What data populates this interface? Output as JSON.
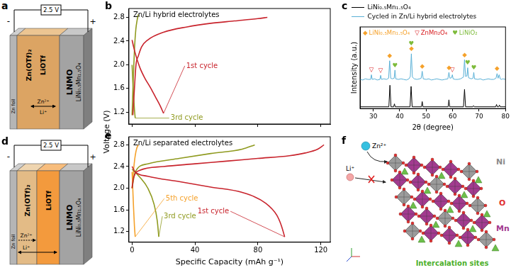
{
  "panel_labels": [
    "a",
    "b",
    "c",
    "d",
    "e",
    "f"
  ],
  "schematics": [
    {
      "voltage": "2.5 V",
      "negative": "-",
      "positive": "+",
      "anode": "Zn foil",
      "electrolytes": [
        "Zn(OTf)₂",
        "LiOTf"
      ],
      "cathode": "LNMO",
      "cathode_formula": "LiNi₀.₅Mn₁.₅O₄",
      "ions": [
        "Zn²⁺",
        "Li⁺"
      ],
      "separated": false
    },
    {
      "voltage": "2.5 V",
      "negative": "-",
      "positive": "+",
      "anode": "Zn foil",
      "electrolytes": [
        "Zn(OTf)₂",
        "LiOTf"
      ],
      "cathode": "LNMO",
      "cathode_formula": "LiNi₀.₅Mn₁.₅O₄",
      "ions": [
        "Zn²⁺",
        "Li⁺"
      ],
      "separated": true
    }
  ],
  "chart_data": [
    {
      "type": "line",
      "title": "Zn/Li hybrid electrolytes",
      "ylabel": "Voltage (V)",
      "xlim": [
        -2,
        126
      ],
      "xticks": [
        0,
        40,
        80,
        120
      ],
      "ylim": [
        1.0,
        2.95
      ],
      "yticks": [
        1.2,
        1.6,
        {
          "value": 2,
          "label": "2.0"
        },
        2.4,
        2.8
      ],
      "tick_labels": "y",
      "grid": false,
      "series": [
        {
          "name": "1st cycle",
          "color": "#c8232c",
          "segments": [
            {
              "x": [
                0.5,
                1.5,
                2.5,
                4,
                6,
                10,
                20,
                35,
                50,
                65,
                80,
                86
              ],
              "values": [
                1.15,
                1.6,
                2.0,
                2.15,
                2.3,
                2.42,
                2.55,
                2.64,
                2.7,
                2.74,
                2.78,
                2.8
              ]
            },
            {
              "x": [
                0,
                1,
                2.5,
                5,
                8,
                12,
                15,
                18,
                20
              ],
              "values": [
                2.42,
                2.3,
                2.15,
                1.95,
                1.78,
                1.6,
                1.45,
                1.3,
                1.18
              ]
            }
          ]
        },
        {
          "name": "3rd cycle",
          "color": "#8f9a1f",
          "segments": [
            {
              "x": [
                0,
                0.8,
                1.6,
                2.4,
                3.2,
                4
              ],
              "values": [
                1.15,
                1.8,
                2.3,
                2.6,
                2.75,
                2.85
              ]
            },
            {
              "x": [
                0,
                0.5,
                1,
                1.5,
                2
              ],
              "values": [
                2.0,
                1.7,
                1.45,
                1.25,
                1.1
              ]
            }
          ]
        }
      ]
    },
    {
      "type": "line",
      "title": "Zn/Li separated electrolytes",
      "xlabel": "Specific Capacity (mAh g⁻¹)",
      "xlim": [
        -2,
        126
      ],
      "xticks": [
        0,
        40,
        80,
        120
      ],
      "ylim": [
        1.0,
        2.95
      ],
      "yticks": [
        1.2,
        1.6,
        {
          "value": 2,
          "label": "2.0"
        },
        2.4,
        2.8
      ],
      "grid": false,
      "series": [
        {
          "name": "1st cycle",
          "color": "#c8232c",
          "segments": [
            {
              "x": [
                0,
                1,
                5,
                20,
                40,
                60,
                80,
                100,
                110,
                118,
                122
              ],
              "values": [
                2.0,
                2.2,
                2.33,
                2.4,
                2.45,
                2.5,
                2.55,
                2.6,
                2.65,
                2.72,
                2.8
              ]
            },
            {
              "x": [
                0,
                2,
                10,
                30,
                50,
                70,
                85,
                92,
                95,
                97
              ],
              "values": [
                2.4,
                2.3,
                2.22,
                2.12,
                2.02,
                1.92,
                1.72,
                1.5,
                1.3,
                1.1
              ]
            }
          ]
        },
        {
          "name": "3rd cycle",
          "color": "#8f9a1f",
          "segments": [
            {
              "x": [
                0,
                2,
                10,
                30,
                50,
                70,
                78
              ],
              "values": [
                2.0,
                2.3,
                2.45,
                2.55,
                2.64,
                2.72,
                2.8
              ]
            },
            {
              "x": [
                0,
                5,
                10,
                14,
                16,
                17
              ],
              "values": [
                2.35,
                2.2,
                2.0,
                1.7,
                1.4,
                1.1
              ]
            }
          ]
        },
        {
          "name": "5th cycle",
          "color": "#f5a12a",
          "segments": [
            {
              "x": [
                0,
                1,
                2,
                3,
                4
              ],
              "values": [
                2.0,
                2.35,
                2.6,
                2.74,
                2.8
              ]
            },
            {
              "x": [
                0,
                0.5,
                1,
                1.5,
                2
              ],
              "values": [
                2.3,
                1.95,
                1.6,
                1.3,
                1.1
              ]
            }
          ]
        }
      ]
    },
    {
      "type": "line",
      "xlabel": "2θ (degree)",
      "ylabel": "Intensity (a.u.)",
      "xlim": [
        25,
        80
      ],
      "xticks": [
        30,
        40,
        50,
        60,
        70,
        80
      ],
      "ylim": [
        0,
        140
      ],
      "tick_labels": "x",
      "grid": false,
      "legend": "top-left",
      "series": [
        {
          "name": "LiNi₀.₅Mn₁.₅O₄",
          "color": "#000000",
          "x": [
            25,
            35.9,
            36.3,
            36.7,
            37.7,
            38.0,
            38.3,
            43.9,
            44.3,
            44.7,
            48.2,
            48.5,
            48.8,
            58.3,
            58.6,
            58.9,
            64.1,
            64.5,
            64.9,
            67.6,
            67.9,
            68.2,
            76.3,
            76.6,
            76.9,
            77.4,
            77.7,
            78.0,
            80
          ],
          "values": [
            3,
            3,
            40,
            3,
            3,
            8,
            3,
            3,
            38,
            3,
            3,
            12,
            3,
            3,
            15,
            3,
            3,
            33,
            3,
            3,
            5,
            3,
            3,
            7,
            3,
            3,
            6,
            3,
            3
          ]
        },
        {
          "name": "Cycled in Zn/Li hybrid electrolytes",
          "color": "#5ab0d6",
          "x": [
            25,
            26,
            27,
            28,
            29,
            29.3,
            29.6,
            30.5,
            31.5,
            32.5,
            32.8,
            33.1,
            34,
            35,
            35.8,
            36.2,
            36.6,
            37.2,
            37.9,
            38.2,
            38.5,
            39.5,
            40.5,
            41.5,
            42.5,
            43.5,
            44,
            44.4,
            44.8,
            45.5,
            46.5,
            47.5,
            48.1,
            48.5,
            48.9,
            50,
            51,
            52,
            53,
            54,
            55,
            56,
            57,
            58.2,
            58.6,
            59,
            59.6,
            59.9,
            60.2,
            61,
            62,
            63,
            64.1,
            64.5,
            64.9,
            65.4,
            65.7,
            66,
            67,
            67.7,
            68,
            68.3,
            69.5,
            70.5,
            71.5,
            72.5,
            73.5,
            74.5,
            75.5,
            76.4,
            76.8,
            77.2,
            77.6,
            78,
            78.4,
            79,
            80
          ],
          "values": [
            50,
            49,
            51,
            50,
            50,
            58,
            50,
            51,
            49,
            50,
            57,
            50,
            51,
            50,
            52,
            82,
            52,
            51,
            52,
            66,
            51,
            50,
            51,
            50,
            49,
            51,
            55,
            94,
            54,
            51,
            50,
            51,
            52,
            64,
            51,
            50,
            51,
            49,
            50,
            51,
            50,
            49,
            50,
            51,
            62,
            52,
            53,
            58,
            51,
            50,
            50,
            51,
            54,
            84,
            55,
            56,
            70,
            53,
            51,
            52,
            62,
            51,
            50,
            51,
            49,
            50,
            51,
            50,
            50,
            52,
            60,
            52,
            58,
            51,
            50,
            51,
            50
          ]
        }
      ],
      "phases": [
        {
          "symbol": "◆",
          "name": "LiNi₀.₅Mn₁.₅O₄",
          "color": "#f5a12a",
          "x": [
            36.2,
            44.4,
            48.5,
            58.6,
            64.5,
            76.8
          ],
          "values": [
            90,
            102,
            72,
            70,
            92,
            68
          ]
        },
        {
          "symbol": "▽",
          "name": "ZnMn₂O₄",
          "color": "#d7191c",
          "x": [
            29.3,
            32.8,
            59.9
          ],
          "values": [
            66,
            65,
            66
          ]
        },
        {
          "symbol": "♥",
          "name": "LiNiO₂",
          "color": "#7dbb3a",
          "x": [
            38.2,
            44.4,
            65.7,
            68
          ],
          "values": [
            74,
            111,
            78,
            70
          ]
        }
      ]
    }
  ],
  "structure": {
    "ions": [
      "Zn²⁺",
      "Li⁺"
    ],
    "atoms": [
      "Ni",
      "O",
      "Mn"
    ],
    "sites": "Intercalation sites"
  }
}
